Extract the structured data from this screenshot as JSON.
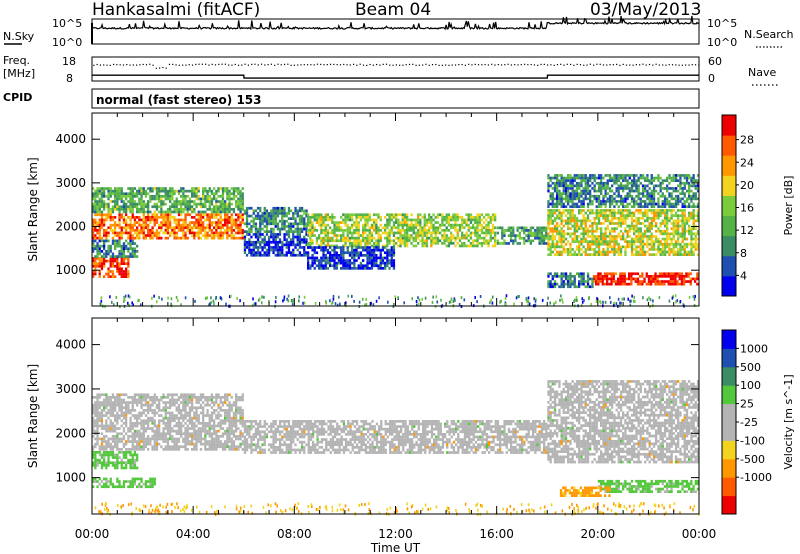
{
  "header": {
    "station": "Hankasalmi (fitACF)",
    "beam": "Beam 04",
    "date": "03/May/2013"
  },
  "panels": {
    "nsky": {
      "left_label": "N.Sky",
      "right_label": "N.Search",
      "left_ticks": [
        "10^5",
        "10^0"
      ],
      "right_ticks": [
        "10^5",
        "10^0"
      ]
    },
    "freq": {
      "left_label_top": "Freq.",
      "left_label_bottom": "[MHz]",
      "right_label": "Nave",
      "left_ticks": [
        "18",
        "8"
      ],
      "right_ticks": [
        "60",
        "0"
      ]
    },
    "cpid": {
      "label": "CPID",
      "text": "normal (fast stereo) 153"
    }
  },
  "colors": {
    "power_scale": [
      "#0000ee",
      "#1f4fb0",
      "#3a8c64",
      "#54b346",
      "#7acc3c",
      "#f2d420",
      "#ff9800",
      "#ff5a00",
      "#ee0000"
    ],
    "velocity_scale": [
      "#ee0000",
      "#ff5a00",
      "#ff9800",
      "#f2d420",
      "#b4b4b4",
      "#b4b4b4",
      "#54c83c",
      "#3a8c64",
      "#1f4fb0",
      "#0000ee"
    ],
    "ground_scatter": "#b4b4b4"
  },
  "chart_data": [
    {
      "type": "line",
      "name": "N.Sky / N.Search",
      "y_scale": "log",
      "ylim": [
        1,
        100000
      ],
      "baseline_level": [
        [
          0,
          0.6
        ],
        [
          6,
          0.58
        ],
        [
          12,
          0.6
        ],
        [
          18,
          0.62
        ],
        [
          18.1,
          0.78
        ],
        [
          24,
          0.8
        ]
      ]
    },
    {
      "type": "line",
      "name": "Freq / Nave",
      "ylim_left": [
        8,
        18
      ],
      "ylim_right": [
        0,
        60
      ],
      "series": [
        {
          "label": "Freq",
          "values_x": [
            0,
            6,
            6.01,
            18,
            18.01,
            24
          ],
          "values_y": [
            10.4,
            10.4,
            9.2,
            9.2,
            10.4,
            10.4
          ]
        },
        {
          "label": "Nave",
          "values_x": [
            0,
            24
          ],
          "values_y": [
            42,
            42
          ]
        }
      ]
    },
    {
      "type": "heatmap",
      "quantity": "Power",
      "xlabel": "",
      "ylabel": "Slant Range [km]",
      "xlim": [
        0,
        24
      ],
      "ylim": [
        180,
        4600
      ],
      "yticks": [
        1000,
        2000,
        3000,
        4000
      ],
      "colorbar_label": "Power [dB]",
      "colorbar_ticks": [
        4,
        8,
        12,
        16,
        20,
        24,
        28
      ],
      "bands": [
        {
          "t0": 0,
          "t1": 6,
          "r0": 1700,
          "r1": 2300,
          "level": 6.5
        },
        {
          "t0": 0,
          "t1": 6,
          "r0": 2300,
          "r1": 2900,
          "level": 3
        },
        {
          "t0": 0,
          "t1": 1.5,
          "r0": 850,
          "r1": 1300,
          "level": 7.5
        },
        {
          "t0": 0,
          "t1": 1.8,
          "r0": 1300,
          "r1": 1700,
          "level": 2
        },
        {
          "t0": 6,
          "t1": 8.5,
          "r0": 1850,
          "r1": 2450,
          "level": 2
        },
        {
          "t0": 6,
          "t1": 8.5,
          "r0": 1300,
          "r1": 1850,
          "level": 0.5
        },
        {
          "t0": 8.5,
          "t1": 16,
          "r0": 1550,
          "r1": 2300,
          "level": 4
        },
        {
          "t0": 8.5,
          "t1": 12,
          "r0": 1000,
          "r1": 1550,
          "level": 0.5
        },
        {
          "t0": 16,
          "t1": 18,
          "r0": 1600,
          "r1": 2000,
          "level": 2.5
        },
        {
          "t0": 18,
          "t1": 24,
          "r0": 1300,
          "r1": 2400,
          "level": 4.5
        },
        {
          "t0": 18,
          "t1": 24,
          "r0": 2400,
          "r1": 3200,
          "level": 2
        },
        {
          "t0": 19.8,
          "t1": 24,
          "r0": 650,
          "r1": 950,
          "level": 8
        },
        {
          "t0": 18,
          "t1": 19.8,
          "r0": 600,
          "r1": 950,
          "level": 1.5
        }
      ]
    },
    {
      "type": "heatmap",
      "quantity": "Velocity",
      "xlabel": "Time UT",
      "ylabel": "Slant Range [km]",
      "xlim": [
        0,
        24
      ],
      "ylim": [
        180,
        4600
      ],
      "yticks": [
        1000,
        2000,
        3000,
        4000
      ],
      "xticks": [
        "00:00",
        "04:00",
        "08:00",
        "12:00",
        "16:00",
        "20:00",
        "00:00"
      ],
      "colorbar_label": "Velocity [m s^-1]",
      "colorbar_ticks": [
        1000,
        500,
        100,
        25,
        -25,
        -100,
        -500,
        -1000
      ],
      "bands": [
        {
          "t0": 0,
          "t1": 6,
          "r0": 1600,
          "r1": 2900,
          "kind": "ground"
        },
        {
          "t0": 0,
          "t1": 1.8,
          "r0": 1200,
          "r1": 1600,
          "kind": "green"
        },
        {
          "t0": 0,
          "t1": 2.5,
          "r0": 750,
          "r1": 1000,
          "kind": "green"
        },
        {
          "t0": 6,
          "t1": 18,
          "r0": 1550,
          "r1": 2300,
          "kind": "ground"
        },
        {
          "t0": 18,
          "t1": 24,
          "r0": 1300,
          "r1": 3200,
          "kind": "ground"
        },
        {
          "t0": 20,
          "t1": 24,
          "r0": 680,
          "r1": 950,
          "kind": "green"
        },
        {
          "t0": 18.5,
          "t1": 20.5,
          "r0": 550,
          "r1": 800,
          "kind": "orange"
        }
      ]
    }
  ],
  "colorbars": {
    "power": {
      "label": "Power [dB]",
      "ticks": [
        "28",
        "24",
        "20",
        "16",
        "12",
        "8",
        "4"
      ]
    },
    "velocity": {
      "label": "Velocity [m s^-1]",
      "ticks": [
        "1000",
        "500",
        "100",
        "25",
        "-25",
        "-100",
        "-500",
        "-1000"
      ]
    }
  },
  "axes": {
    "ylabel": "Slant Range [km]",
    "yticks": [
      "4000",
      "3000",
      "2000",
      "1000"
    ],
    "xlabel": "Time UT",
    "xticks": [
      "00:00",
      "04:00",
      "08:00",
      "12:00",
      "16:00",
      "20:00",
      "00:00"
    ]
  }
}
